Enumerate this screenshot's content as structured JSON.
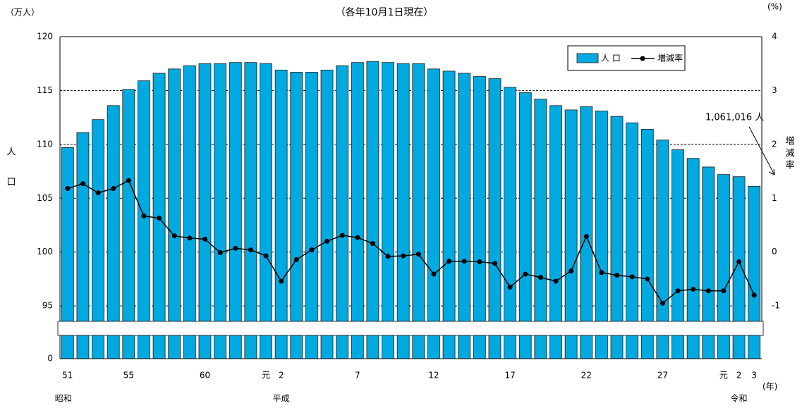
{
  "chart_data": {
    "type": "bar_line",
    "title": "（各年10月1日現在）",
    "y_unit": "（万人）",
    "y_label": "人口",
    "y2_unit": "(%)",
    "y2_label": "増減率",
    "x_unit": "(年)",
    "eras": [
      "昭和",
      "平成",
      "令和"
    ],
    "annotation": "1,061,016 人",
    "categories": [
      "51",
      null,
      null,
      null,
      "55",
      null,
      null,
      null,
      null,
      "60",
      null,
      null,
      null,
      "元",
      "2",
      null,
      null,
      null,
      null,
      "7",
      null,
      null,
      null,
      null,
      "12",
      null,
      null,
      null,
      null,
      "17",
      null,
      null,
      null,
      null,
      "22",
      null,
      null,
      null,
      null,
      "27",
      null,
      null,
      null,
      "元",
      "2",
      "3"
    ],
    "series": [
      {
        "name": "人 口",
        "color": "#00a9e0",
        "type": "bar",
        "values": [
          109.7,
          111.1,
          112.3,
          113.6,
          115.1,
          115.9,
          116.6,
          117.0,
          117.3,
          117.5,
          117.5,
          117.6,
          117.6,
          117.5,
          116.9,
          116.7,
          116.7,
          116.9,
          117.3,
          117.6,
          117.7,
          117.6,
          117.5,
          117.5,
          117.0,
          116.8,
          116.6,
          116.3,
          116.1,
          115.3,
          114.8,
          114.2,
          113.6,
          113.2,
          113.5,
          113.1,
          112.6,
          112.0,
          111.4,
          110.4,
          109.5,
          108.7,
          107.9,
          107.2,
          107.0,
          106.1
        ]
      },
      {
        "name": "増減率",
        "color": "#000000",
        "type": "line",
        "axis": "y2",
        "values": [
          1.18,
          1.27,
          1.1,
          1.18,
          1.33,
          0.67,
          0.63,
          0.3,
          0.26,
          0.24,
          -0.01,
          0.07,
          0.04,
          -0.07,
          -0.54,
          -0.14,
          0.04,
          0.2,
          0.31,
          0.27,
          0.16,
          -0.08,
          -0.07,
          -0.04,
          -0.41,
          -0.17,
          -0.17,
          -0.18,
          -0.21,
          -0.65,
          -0.41,
          -0.47,
          -0.54,
          -0.35,
          0.29,
          -0.38,
          -0.43,
          -0.46,
          -0.5,
          -0.95,
          -0.72,
          -0.69,
          -0.72,
          -0.72,
          -0.18,
          -0.8
        ]
      }
    ],
    "ylim": [
      0,
      120
    ],
    "axis_break": 92,
    "yticks": [
      0,
      95,
      100,
      105,
      110,
      115,
      120
    ],
    "y2lim": [
      -1.6,
      4
    ],
    "y2ticks": [
      -1,
      0,
      1,
      2,
      3,
      4
    ],
    "grid": true
  }
}
